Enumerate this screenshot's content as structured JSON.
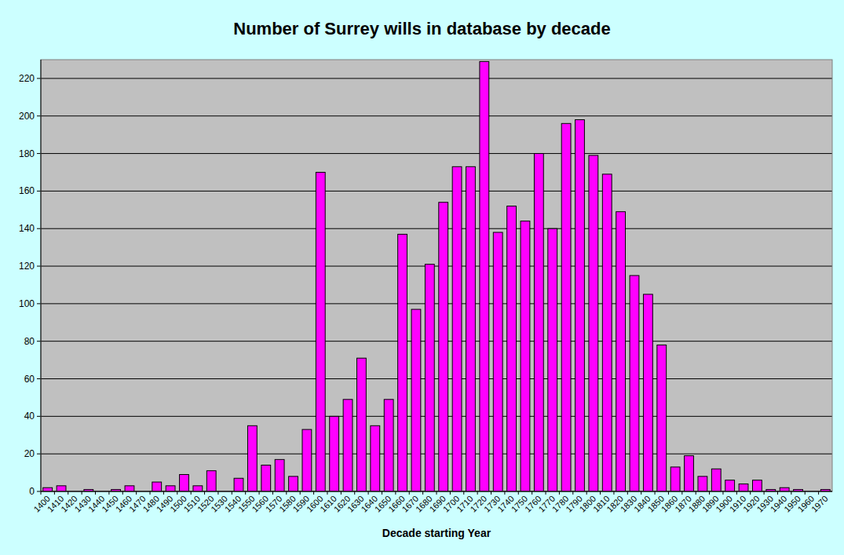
{
  "chart_data": {
    "type": "bar",
    "title": "Number of Surrey wills in database by decade",
    "x_label": "Decade starting Year",
    "categories": [
      "1400",
      "1410",
      "1420",
      "1430",
      "1440",
      "1450",
      "1460",
      "1470",
      "1480",
      "1490",
      "1500",
      "1510",
      "1520",
      "1530",
      "1540",
      "1550",
      "1560",
      "1570",
      "1580",
      "1590",
      "1600",
      "1610",
      "1620",
      "1630",
      "1640",
      "1650",
      "1660",
      "1670",
      "1680",
      "1690",
      "1700",
      "1710",
      "1720",
      "1730",
      "1740",
      "1750",
      "1760",
      "1770",
      "1780",
      "1790",
      "1800",
      "1810",
      "1820",
      "1830",
      "1840",
      "1850",
      "1860",
      "1870",
      "1880",
      "1890",
      "1900",
      "1910",
      "1920",
      "1930",
      "1940",
      "1950",
      "1960",
      "1970"
    ],
    "values": [
      2,
      3,
      0,
      1,
      0,
      1,
      3,
      0,
      5,
      3,
      9,
      3,
      11,
      0,
      7,
      35,
      14,
      17,
      8,
      33,
      170,
      40,
      49,
      71,
      35,
      49,
      137,
      97,
      121,
      154,
      173,
      173,
      229,
      138,
      152,
      144,
      180,
      140,
      196,
      198,
      179,
      169,
      149,
      115,
      105,
      78,
      13,
      19,
      8,
      12,
      6,
      4,
      6,
      1,
      2,
      1,
      0,
      1
    ],
    "color": "#ff00ff",
    "ylim": [
      0,
      230
    ],
    "yticks": [
      0,
      20,
      40,
      60,
      80,
      100,
      120,
      140,
      160,
      180,
      200,
      220
    ],
    "grid": true
  }
}
